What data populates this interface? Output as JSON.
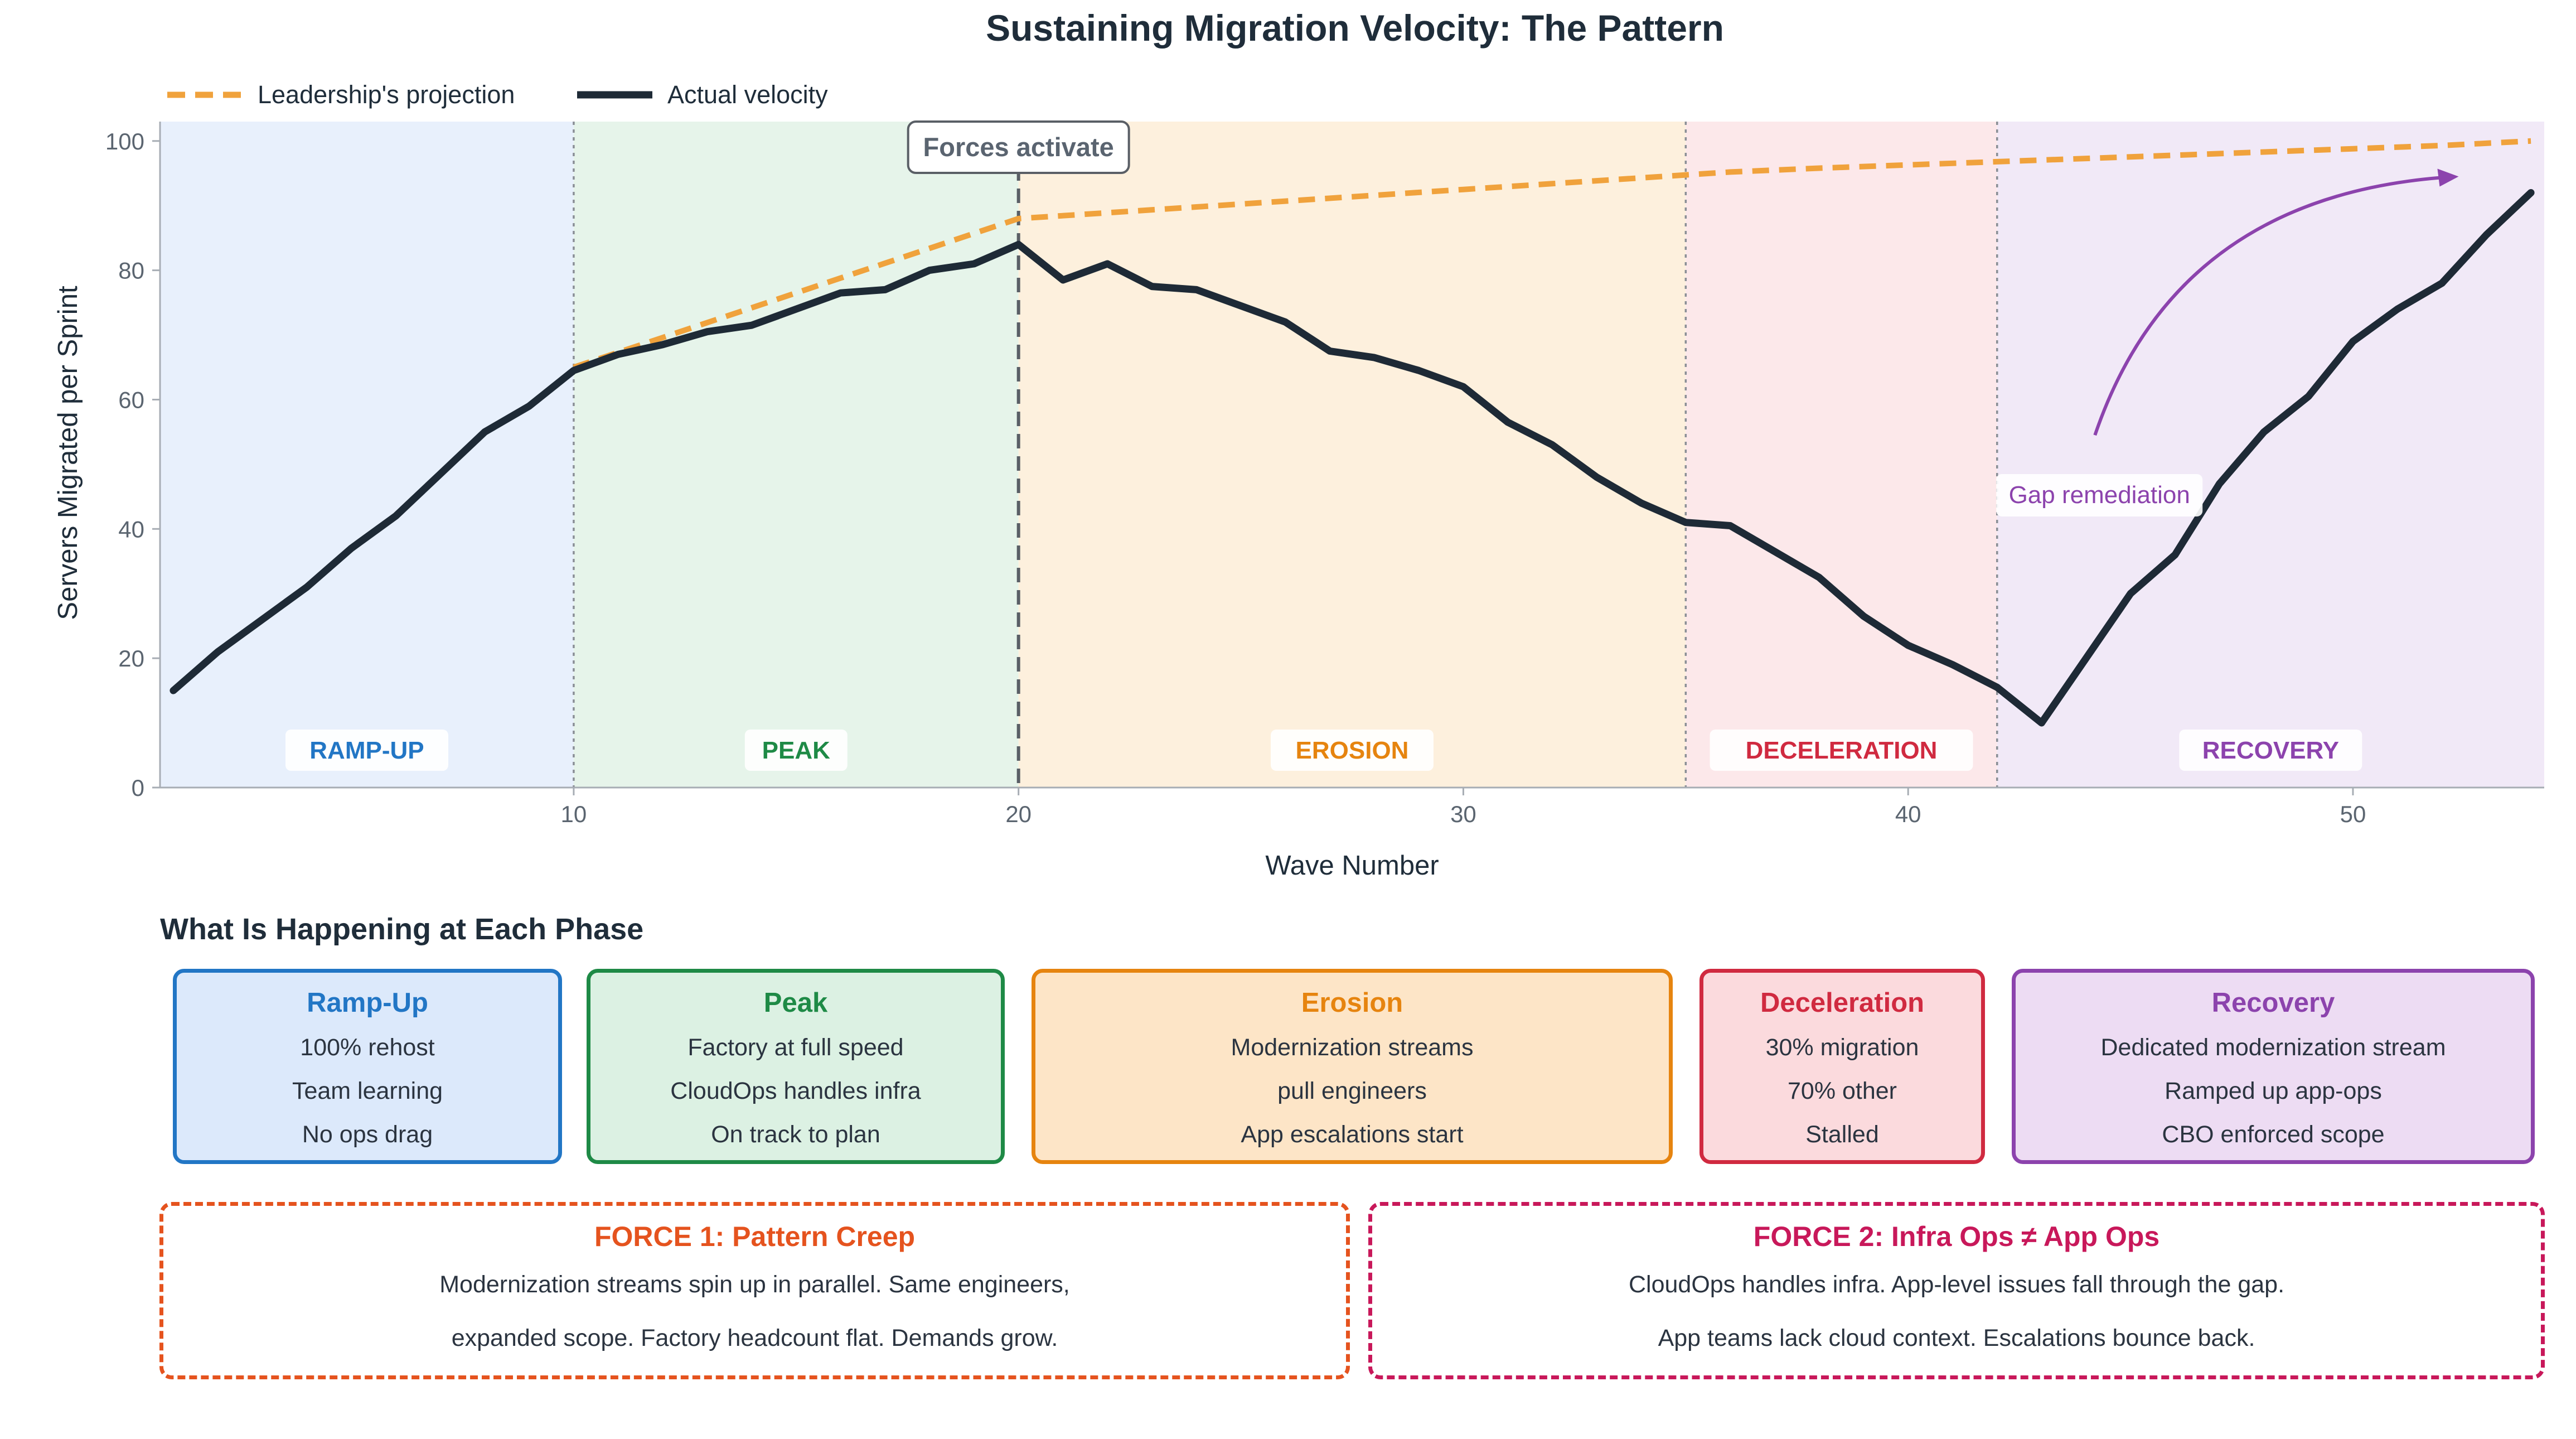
{
  "title": "Sustaining Migration Velocity: The Pattern",
  "chart_data": {
    "type": "line",
    "title": "Sustaining Migration Velocity: The Pattern",
    "xlabel": "Wave Number",
    "ylabel": "Servers Migrated per Sprint",
    "xlim": [
      0.7,
      54.3
    ],
    "ylim": [
      0,
      103
    ],
    "x_ticks": [
      10,
      20,
      30,
      40,
      50
    ],
    "y_ticks": [
      0,
      20,
      40,
      60,
      80,
      100
    ],
    "grid": false,
    "legend_position": "top-left",
    "series": [
      {
        "name": "Leadership's projection",
        "style": "dashed",
        "color": "#f0a23c",
        "x": [
          10,
          11,
          12,
          13,
          14,
          15,
          16,
          17,
          18,
          19,
          20,
          22,
          24,
          26,
          28,
          30,
          32,
          34,
          36,
          38,
          40,
          42,
          44,
          46,
          48,
          50,
          52,
          54
        ],
        "y": [
          65,
          67.3,
          69.6,
          71.9,
          74.2,
          76.5,
          78.8,
          81.1,
          83.4,
          85.7,
          88,
          88.9,
          89.8,
          90.7,
          91.6,
          92.5,
          93.4,
          94.3,
          95.2,
          95.8,
          96.3,
          96.8,
          97.3,
          97.8,
          98.3,
          98.8,
          99.3,
          100
        ]
      },
      {
        "name": "Actual velocity",
        "style": "solid",
        "color": "#1e2a36",
        "x": [
          1,
          2,
          3,
          4,
          5,
          6,
          7,
          8,
          9,
          10,
          11,
          12,
          13,
          14,
          15,
          16,
          17,
          18,
          19,
          20,
          21,
          22,
          23,
          24,
          25,
          26,
          27,
          28,
          29,
          30,
          31,
          32,
          33,
          34,
          35,
          36,
          37,
          38,
          39,
          40,
          41,
          42,
          43,
          44,
          45,
          46,
          47,
          48,
          49,
          50,
          51,
          52,
          53,
          54
        ],
        "y": [
          15,
          21,
          26,
          31,
          37,
          42,
          48.5,
          55,
          59,
          64.5,
          67,
          68.5,
          70.5,
          71.5,
          74,
          76.5,
          77,
          80,
          81,
          84,
          78.5,
          81,
          77.5,
          77,
          74.5,
          72,
          67.5,
          66.5,
          64.5,
          62,
          56.5,
          53,
          48,
          44,
          41,
          40.5,
          36.5,
          32.5,
          26.5,
          22,
          19,
          15.5,
          10,
          20,
          30,
          36,
          47,
          55,
          60.5,
          69,
          74,
          78,
          85.5,
          92
        ]
      }
    ],
    "phases": [
      {
        "label": "RAMP-UP",
        "from": 0.7,
        "to": 10,
        "fill": "#e8f0fc",
        "color": "#2276c5"
      },
      {
        "label": "PEAK",
        "from": 10,
        "to": 20,
        "fill": "#e6f4ea",
        "color": "#1e8a46"
      },
      {
        "label": "EROSION",
        "from": 20,
        "to": 35,
        "fill": "#fdf0dd",
        "color": "#e6840f"
      },
      {
        "label": "DECELERATION",
        "from": 35,
        "to": 42,
        "fill": "#fce8ea",
        "color": "#d02a40"
      },
      {
        "label": "RECOVERY",
        "from": 42,
        "to": 54.3,
        "fill": "#f1e9f7",
        "color": "#8c43ad"
      }
    ],
    "annotations": [
      {
        "text": "Forces activate",
        "x": 20
      },
      {
        "text": "Gap remediation",
        "x": 44.3,
        "y": 44
      }
    ]
  },
  "phase_section": {
    "title": "What Is Happening at Each Phase",
    "boxes": [
      {
        "title": "Ramp-Up",
        "lines": [
          "100% rehost",
          "Team learning",
          "No ops drag"
        ],
        "color": "#2276c5",
        "fill": "#dce9fb"
      },
      {
        "title": "Peak",
        "lines": [
          "Factory at full speed",
          "CloudOps handles infra",
          "On track to plan"
        ],
        "color": "#1e8a46",
        "fill": "#dcf1e3"
      },
      {
        "title": "Erosion",
        "lines": [
          "Modernization streams",
          "pull engineers",
          "App escalations start"
        ],
        "color": "#e6840f",
        "fill": "#fde5c7"
      },
      {
        "title": "Deceleration",
        "lines": [
          "30% migration",
          "70% other",
          "Stalled"
        ],
        "color": "#d02a40",
        "fill": "#fbdadd"
      },
      {
        "title": "Recovery",
        "lines": [
          "Dedicated modernization stream",
          "Ramped up app-ops",
          "CBO enforced scope"
        ],
        "color": "#8c43ad",
        "fill": "#eddcf3"
      }
    ]
  },
  "forces": [
    {
      "title": "FORCE 1: Pattern Creep",
      "lines": [
        "Modernization streams spin up in parallel. Same engineers,",
        "expanded scope. Factory headcount flat. Demands grow."
      ],
      "color": "#e5531e"
    },
    {
      "title": "FORCE 2: Infra Ops ≠ App Ops",
      "lines": [
        "CloudOps handles infra. App-level issues fall through the gap.",
        "App teams lack cloud context. Escalations bounce back."
      ],
      "color": "#c8185a"
    }
  ]
}
